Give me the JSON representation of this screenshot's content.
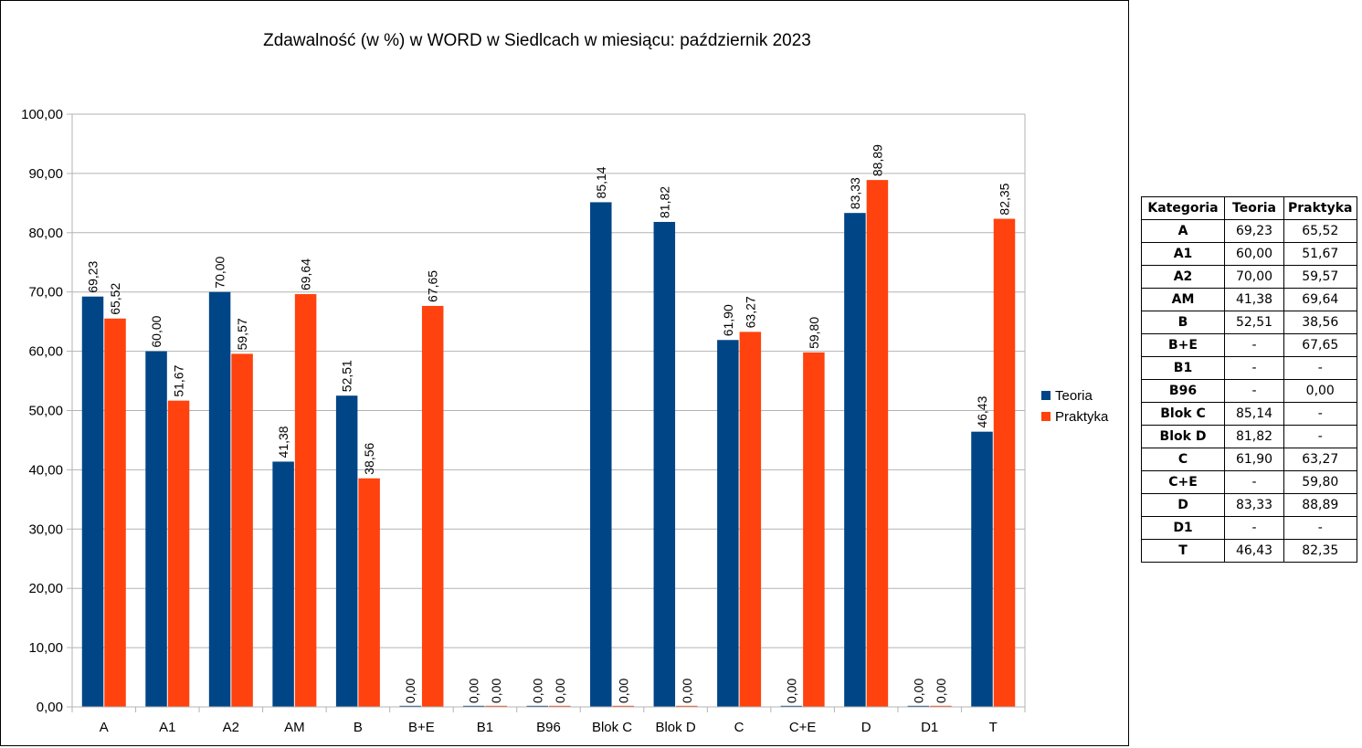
{
  "chart_data": {
    "type": "bar",
    "title": "Zdawalność (w %) w WORD w Siedlcach w miesiącu: październik 2023",
    "categories": [
      "A",
      "A1",
      "A2",
      "AM",
      "B",
      "B+E",
      "B1",
      "B96",
      "Blok C",
      "Blok D",
      "C",
      "C+E",
      "D",
      "D1",
      "T"
    ],
    "series": [
      {
        "name": "Teoria",
        "color": "#004586",
        "values": [
          69.23,
          60.0,
          70.0,
          41.38,
          52.51,
          0.0,
          0.0,
          0.0,
          85.14,
          81.82,
          61.9,
          0.0,
          83.33,
          0.0,
          46.43
        ],
        "labels": [
          "69,23",
          "60,00",
          "70,00",
          "41,38",
          "52,51",
          "0,00",
          "0,00",
          "0,00",
          "85,14",
          "81,82",
          "61,90",
          "0,00",
          "83,33",
          "0,00",
          "46,43"
        ]
      },
      {
        "name": "Praktyka",
        "color": "#ff420e",
        "values": [
          65.52,
          51.67,
          59.57,
          69.64,
          38.56,
          67.65,
          0.0,
          0.0,
          0.0,
          0.0,
          63.27,
          59.8,
          88.89,
          0.0,
          82.35
        ],
        "labels": [
          "65,52",
          "51,67",
          "59,57",
          "69,64",
          "38,56",
          "67,65",
          "0,00",
          "0,00",
          "0,00",
          "0,00",
          "63,27",
          "59,80",
          "88,89",
          "0,00",
          "82,35"
        ]
      }
    ],
    "ylim": [
      0,
      100
    ],
    "yticks": [
      "0,00",
      "10,00",
      "20,00",
      "30,00",
      "40,00",
      "50,00",
      "60,00",
      "70,00",
      "80,00",
      "90,00",
      "100,00"
    ],
    "grid": true,
    "legend_position": "right"
  },
  "table": {
    "headers": [
      "Kategoria",
      "Teoria",
      "Praktyka"
    ],
    "rows": [
      [
        "A",
        "69,23",
        "65,52"
      ],
      [
        "A1",
        "60,00",
        "51,67"
      ],
      [
        "A2",
        "70,00",
        "59,57"
      ],
      [
        "AM",
        "41,38",
        "69,64"
      ],
      [
        "B",
        "52,51",
        "38,56"
      ],
      [
        "B+E",
        "-",
        "67,65"
      ],
      [
        "B1",
        "-",
        "-"
      ],
      [
        "B96",
        "-",
        "0,00"
      ],
      [
        "Blok C",
        "85,14",
        "-"
      ],
      [
        "Blok D",
        "81,82",
        "-"
      ],
      [
        "C",
        "61,90",
        "63,27"
      ],
      [
        "C+E",
        "-",
        "59,80"
      ],
      [
        "D",
        "83,33",
        "88,89"
      ],
      [
        "D1",
        "-",
        "-"
      ],
      [
        "T",
        "46,43",
        "82,35"
      ]
    ]
  }
}
